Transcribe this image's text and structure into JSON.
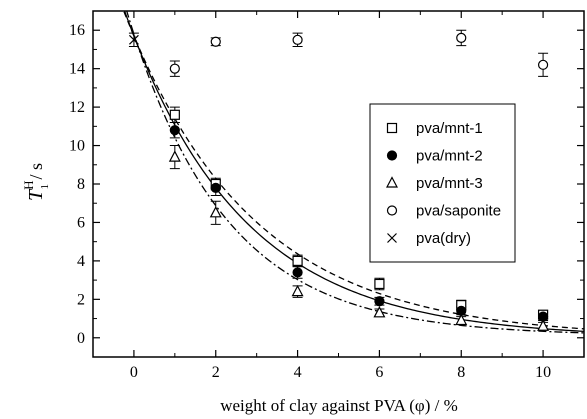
{
  "chart_data": {
    "type": "scatter",
    "xlabel": "weight of clay against PVA (φ) / %",
    "ylabel": {
      "main": "T",
      "sup": "H",
      "sub": "1",
      "unit": " / s"
    },
    "xlim": [
      -1,
      11
    ],
    "ylim": [
      -1,
      17
    ],
    "xticks": [
      0,
      2,
      4,
      6,
      8,
      10
    ],
    "yticks": [
      0,
      2,
      4,
      6,
      8,
      10,
      12,
      14,
      16
    ],
    "grid": false,
    "legend_position": "right",
    "series": [
      {
        "name": "pva/mnt-1",
        "marker": "open-square",
        "points": [
          {
            "x": 1,
            "y": 11.6,
            "err": 0.4
          },
          {
            "x": 2,
            "y": 8.0,
            "err": 0.3
          },
          {
            "x": 4,
            "y": 4.0,
            "err": 0.3
          },
          {
            "x": 6,
            "y": 2.8,
            "err": 0.3
          },
          {
            "x": 8,
            "y": 1.7,
            "err": 0.25
          },
          {
            "x": 10,
            "y": 1.2,
            "err": 0.2
          }
        ]
      },
      {
        "name": "pva/mnt-2",
        "marker": "filled-circle",
        "points": [
          {
            "x": 1,
            "y": 10.8,
            "err": 0.4
          },
          {
            "x": 2,
            "y": 7.8,
            "err": 0.4
          },
          {
            "x": 4,
            "y": 3.4,
            "err": 0.3
          },
          {
            "x": 6,
            "y": 1.9,
            "err": 0.2
          },
          {
            "x": 8,
            "y": 1.4,
            "err": 0.2
          },
          {
            "x": 10,
            "y": 1.1,
            "err": 0.2
          }
        ]
      },
      {
        "name": "pva/mnt-3",
        "marker": "open-triangle",
        "points": [
          {
            "x": 1,
            "y": 9.4,
            "err": 0.6
          },
          {
            "x": 2,
            "y": 6.5,
            "err": 0.6
          },
          {
            "x": 4,
            "y": 2.4,
            "err": 0.3
          },
          {
            "x": 6,
            "y": 1.3,
            "err": 0.2
          },
          {
            "x": 8,
            "y": 0.9,
            "err": 0.2
          },
          {
            "x": 10,
            "y": 0.6,
            "err": 0.2
          }
        ]
      },
      {
        "name": "pva/saponite",
        "marker": "open-circle",
        "points": [
          {
            "x": 1,
            "y": 14.0,
            "err": 0.4
          },
          {
            "x": 2,
            "y": 15.4,
            "err": 0.2
          },
          {
            "x": 4,
            "y": 15.5,
            "err": 0.35
          },
          {
            "x": 8,
            "y": 15.6,
            "err": 0.4
          },
          {
            "x": 10,
            "y": 14.2,
            "err": 0.6
          }
        ]
      },
      {
        "name": "pva(dry)",
        "marker": "cross",
        "points": [
          {
            "x": 0,
            "y": 15.5,
            "err": 0.35
          }
        ]
      }
    ],
    "fit_curves": [
      {
        "style": "dashed",
        "y0": 15.7,
        "k": 0.32,
        "c": 0.0
      },
      {
        "style": "solid",
        "y0": 15.7,
        "k": 0.35,
        "c": 0.0
      },
      {
        "style": "dashdot",
        "y0": 15.7,
        "k": 0.42,
        "c": 0.1
      }
    ]
  }
}
